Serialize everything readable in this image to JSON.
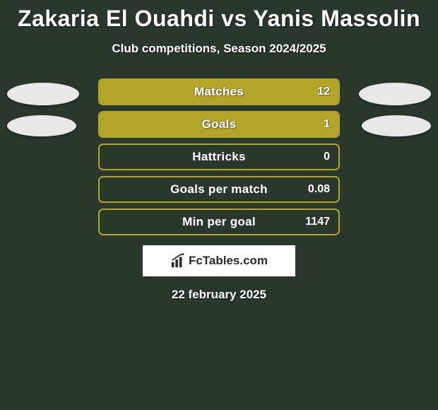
{
  "title": "Zakaria El Ouahdi vs Yanis Massolin",
  "subtitle": "Club competitions, Season 2024/2025",
  "date": "22 february 2025",
  "logo_text": "FcTables.com",
  "colors": {
    "background": "#2a382c",
    "bar_border": "#b2a529",
    "bar_fill": "#b2a529",
    "avatar": "#e8e8e8",
    "text": "#ffffff",
    "logo_bg": "#ffffff",
    "logo_text": "#2a2a2a"
  },
  "stats": [
    {
      "label": "Matches",
      "value": "12",
      "fill_pct": 100
    },
    {
      "label": "Goals",
      "value": "1",
      "fill_pct": 100
    },
    {
      "label": "Hattricks",
      "value": "0",
      "fill_pct": 0
    },
    {
      "label": "Goals per match",
      "value": "0.08",
      "fill_pct": 0
    },
    {
      "label": "Min per goal",
      "value": "1147",
      "fill_pct": 0
    }
  ],
  "avatars": {
    "left_rows": [
      0,
      1
    ],
    "right_rows": [
      0,
      1
    ]
  }
}
